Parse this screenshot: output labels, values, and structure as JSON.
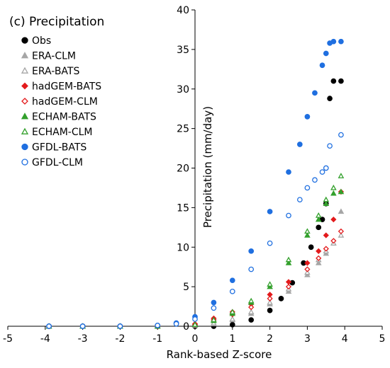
{
  "chart_data": {
    "type": "scatter",
    "title": "(c) Precipitation",
    "xlabel": "Rank-based Z-score",
    "ylabel": "Precipitation (mm/day)",
    "xlim": [
      -5,
      5
    ],
    "ylim": [
      0,
      40
    ],
    "xticks": [
      -5,
      -4,
      -3,
      -2,
      -1,
      0,
      1,
      2,
      3,
      4,
      5
    ],
    "yticks": [
      0,
      5,
      10,
      15,
      20,
      25,
      30,
      35,
      40
    ],
    "xtick_labels": [
      "-5",
      "-4",
      "-3",
      "-2",
      "-1",
      "0",
      "1",
      "2",
      "3",
      "4",
      "5"
    ],
    "ytick_labels": [
      "0",
      "5",
      "10",
      "15",
      "20",
      "25",
      "30",
      "35",
      "40"
    ],
    "grid": false,
    "legend_position": "top-left",
    "series": [
      {
        "name": "Obs",
        "marker": "circle",
        "filled": true,
        "color": "#000000",
        "x": [
          -3.9,
          -3.0,
          -2.0,
          -1.0,
          0.0,
          0.5,
          1.0,
          1.5,
          2.0,
          2.3,
          2.6,
          2.9,
          3.1,
          3.3,
          3.4,
          3.5,
          3.6,
          3.7,
          3.9
        ],
        "y": [
          0,
          0,
          0,
          0,
          0,
          0,
          0.2,
          0.8,
          2.0,
          3.5,
          5.5,
          8.0,
          10.0,
          12.5,
          13.5,
          15.5,
          28.8,
          31.0,
          31.0
        ]
      },
      {
        "name": "ERA-CLM",
        "marker": "triangle",
        "filled": true,
        "color": "#a6a6a6",
        "x": [
          -3.9,
          -3.0,
          -2.0,
          -1.0,
          0.0,
          0.5,
          1.0,
          1.5,
          2.0,
          2.5,
          3.0,
          3.3,
          3.5,
          3.7,
          3.9
        ],
        "y": [
          0,
          0,
          0,
          0,
          0.1,
          0.3,
          0.8,
          1.6,
          2.8,
          4.4,
          6.5,
          8.0,
          9.2,
          10.5,
          14.5
        ]
      },
      {
        "name": "ERA-BATS",
        "marker": "triangle",
        "filled": false,
        "color": "#a6a6a6",
        "x": [
          -3.9,
          -3.0,
          -2.0,
          -1.0,
          0.0,
          0.5,
          1.0,
          1.5,
          2.0,
          2.5,
          3.0,
          3.3,
          3.5,
          3.7,
          3.9
        ],
        "y": [
          0,
          0,
          0,
          0,
          0.1,
          0.4,
          0.9,
          1.8,
          3.0,
          4.7,
          6.8,
          8.4,
          9.5,
          10.5,
          11.5
        ]
      },
      {
        "name": "hadGEM-BATS",
        "marker": "diamond",
        "filled": true,
        "color": "#e31a1c",
        "x": [
          -3.9,
          -3.0,
          -2.0,
          -1.0,
          0.0,
          0.5,
          1.0,
          1.5,
          2.0,
          2.5,
          3.0,
          3.3,
          3.5,
          3.7,
          3.9
        ],
        "y": [
          0,
          0,
          0,
          0,
          0.3,
          1.0,
          1.8,
          2.8,
          4.0,
          5.6,
          8.0,
          9.5,
          11.5,
          13.5,
          17.0
        ]
      },
      {
        "name": "hadGEM-CLM",
        "marker": "diamond",
        "filled": false,
        "color": "#e31a1c",
        "x": [
          -3.9,
          -3.0,
          -2.0,
          -1.0,
          0.0,
          0.5,
          1.0,
          1.5,
          2.0,
          2.5,
          3.0,
          3.3,
          3.5,
          3.7,
          3.9
        ],
        "y": [
          0,
          0,
          0,
          0,
          0.2,
          0.8,
          1.5,
          2.4,
          3.5,
          5.0,
          7.2,
          8.6,
          9.8,
          10.8,
          12.0
        ]
      },
      {
        "name": "ECHAM-BATS",
        "marker": "triangle",
        "filled": true,
        "color": "#33a02c",
        "x": [
          -3.9,
          -3.0,
          -2.0,
          -1.0,
          0.0,
          0.5,
          1.0,
          1.5,
          2.0,
          2.5,
          3.0,
          3.3,
          3.5,
          3.7,
          3.9
        ],
        "y": [
          0,
          0,
          0,
          0,
          0.2,
          0.7,
          1.6,
          3.0,
          5.0,
          8.0,
          11.5,
          13.5,
          15.5,
          16.8,
          17.0
        ]
      },
      {
        "name": "ECHAM-CLM",
        "marker": "triangle",
        "filled": false,
        "color": "#33a02c",
        "x": [
          -3.9,
          -3.0,
          -2.0,
          -1.0,
          0.0,
          0.5,
          1.0,
          1.5,
          2.0,
          2.5,
          3.0,
          3.3,
          3.5,
          3.7,
          3.9
        ],
        "y": [
          0,
          0,
          0,
          0,
          0.2,
          0.8,
          1.8,
          3.2,
          5.3,
          8.4,
          12.0,
          14.0,
          16.0,
          17.5,
          19.0
        ]
      },
      {
        "name": "GFDL-BATS",
        "marker": "circle",
        "filled": true,
        "color": "#1f6fe0",
        "x": [
          -3.9,
          -3.0,
          -2.0,
          -1.0,
          -0.5,
          0.0,
          0.5,
          1.0,
          1.5,
          2.0,
          2.5,
          2.8,
          3.0,
          3.2,
          3.4,
          3.5,
          3.6,
          3.7,
          3.9
        ],
        "y": [
          0,
          0,
          0,
          0.1,
          0.4,
          1.2,
          3.0,
          5.8,
          9.5,
          14.5,
          19.5,
          23.0,
          26.5,
          29.5,
          33.0,
          34.5,
          35.8,
          36.0,
          36.0
        ]
      },
      {
        "name": "GFDL-CLM",
        "marker": "circle",
        "filled": false,
        "color": "#1f6fe0",
        "x": [
          -3.9,
          -3.0,
          -2.0,
          -1.0,
          -0.5,
          0.0,
          0.5,
          1.0,
          1.5,
          2.0,
          2.5,
          2.8,
          3.0,
          3.2,
          3.4,
          3.5,
          3.6,
          3.9
        ],
        "y": [
          0,
          0,
          0,
          0.1,
          0.3,
          0.9,
          2.3,
          4.4,
          7.2,
          10.5,
          14.0,
          16.0,
          17.5,
          18.5,
          19.5,
          20.0,
          22.8,
          24.2
        ]
      }
    ]
  }
}
